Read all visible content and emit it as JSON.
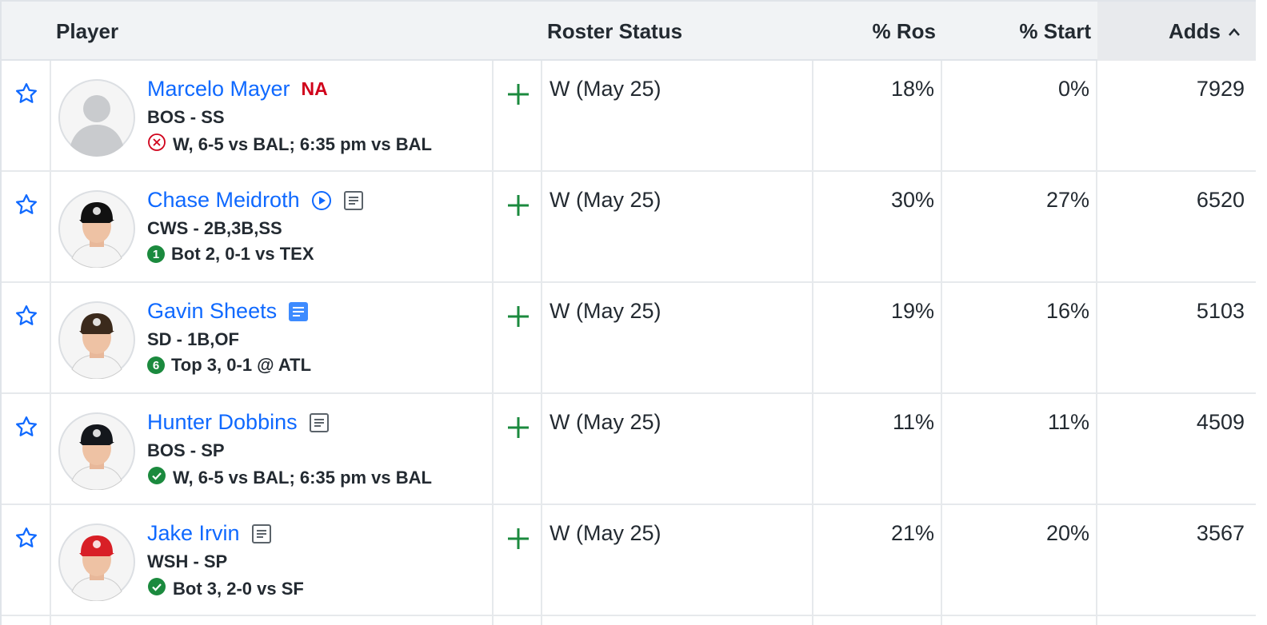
{
  "header": {
    "columns": [
      "Player",
      "Roster Status",
      "% Ros",
      "% Start",
      "Adds"
    ]
  },
  "table": {
    "rows": [
      {
        "name": "Marcelo Mayer",
        "tag": "NA",
        "position": "BOS - SS",
        "game": "W, 6-5 vs BAL; 6:35 pm vs BAL",
        "roster_status": "W (May 25)",
        "pct_ros": "18%",
        "pct_start": "0%",
        "adds": "7929"
      },
      {
        "name": "Chase Meidroth",
        "position": "CWS - 2B,3B,SS",
        "game_badge": "1",
        "game": "Bot 2, 0-1 vs TEX",
        "roster_status": "W (May 25)",
        "pct_ros": "30%",
        "pct_start": "27%",
        "adds": "6520"
      },
      {
        "name": "Gavin Sheets",
        "position": "SD - 1B,OF",
        "game_badge": "6",
        "game": "Top 3, 0-1 @ ATL",
        "roster_status": "W (May 25)",
        "pct_ros": "19%",
        "pct_start": "16%",
        "adds": "5103"
      },
      {
        "name": "Hunter Dobbins",
        "position": "BOS - SP",
        "game": "W, 6-5 vs BAL; 6:35 pm vs BAL",
        "roster_status": "W (May 25)",
        "pct_ros": "11%",
        "pct_start": "11%",
        "adds": "4509"
      },
      {
        "name": "Jake Irvin",
        "position": "WSH - SP",
        "game": "Bot 3, 2-0 vs SF",
        "roster_status": "W (May 25)",
        "pct_ros": "21%",
        "pct_start": "20%",
        "adds": "3567"
      }
    ]
  }
}
